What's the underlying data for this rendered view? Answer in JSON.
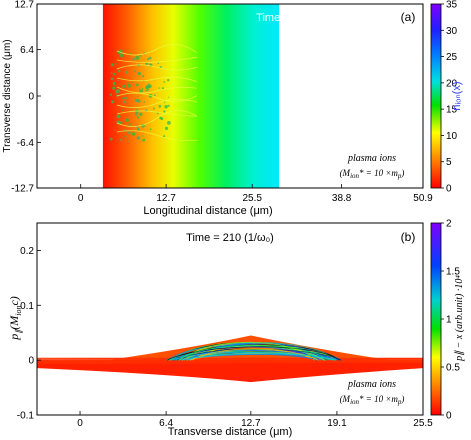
{
  "chart_data": [
    {
      "panel": "(a)",
      "type": "heatmap",
      "annotation": "Time = 210 (1/ω₀)",
      "xlabel": "Longitudinal distance (μm)",
      "ylabel": "Transverse distance (μm)",
      "xlim": [
        -6.5,
        50.9
      ],
      "ylim": [
        -12.7,
        12.7
      ],
      "x_ticks": [
        "0",
        "12.7",
        "25.5",
        "38.8",
        "50.9"
      ],
      "y_ticks": [
        "12.7",
        "6.4",
        "0",
        "-6.4",
        "-12.7"
      ],
      "colorbar": {
        "label": "nᵢₒₙ(x)",
        "range": [
          0,
          35
        ],
        "ticks": [
          "35",
          "30",
          "25",
          "20",
          "15",
          "10",
          "5",
          "0"
        ],
        "colors": [
          "#ff0000",
          "#ff8000",
          "#ffff00",
          "#00e000",
          "#00e0e0",
          "#0040ff",
          "#6000ff",
          "#8000ff"
        ]
      },
      "plasma_region_x": [
        3.3,
        29.5
      ],
      "legend": {
        "line1": "plasma ions",
        "line2_prefix": "(M",
        "line2_sub": "ion",
        "line2_suffix": "* = 10 ×m",
        "line2_sub2": "p",
        "line2_end": ")"
      }
    },
    {
      "panel": "(b)",
      "type": "scatter",
      "annotation": "Time = 210 (1/ω₀)",
      "xlabel": "Transverse distance (μm)",
      "ylabel_main": "p",
      "ylabel_sub": "∥",
      "ylabel_rest": "(M",
      "ylabel_sub2": "ion",
      "ylabel_end": "c)",
      "xlim": [
        -3.2,
        25.5
      ],
      "ylim": [
        -0.1,
        0.25
      ],
      "x_ticks": [
        "0",
        "6.4",
        "12.7",
        "19.1",
        "25.5"
      ],
      "y_ticks": [
        "0.2",
        "0.1",
        "0",
        "-0.1"
      ],
      "colorbar": {
        "label": "p∥ − x (arb.unit) ·10⁴",
        "range": [
          0,
          2
        ],
        "ticks": [
          "2",
          "1.5",
          "1",
          "0.5",
          "0"
        ],
        "colors": [
          "#ff0000",
          "#ff8000",
          "#ffff00",
          "#00e000",
          "#00d0d0",
          "#0040ff",
          "#8000ff"
        ]
      },
      "legend": {
        "line1": "plasma ions",
        "line2_prefix": "(M",
        "line2_sub": "ion",
        "line2_suffix": "* = 10 ×m",
        "line2_sub2": "p",
        "line2_end": ")"
      }
    }
  ]
}
